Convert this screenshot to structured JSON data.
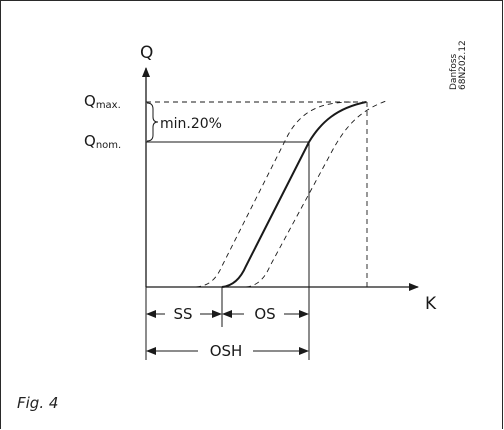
{
  "axes": {
    "y_label": "Q",
    "x_label": "K"
  },
  "levels": {
    "q_max_main": "Q",
    "q_max_sub": "max.",
    "q_nom_main": "Q",
    "q_nom_sub": "nom.",
    "margin_note": "min.20%"
  },
  "dimensions": {
    "ss": "SS",
    "os": "OS",
    "osh": "OSH"
  },
  "watermark": {
    "line1": "Danfoss",
    "line2": "68N202.12"
  },
  "caption": "Fig. 4",
  "colors": {
    "line": "#1a1a1a",
    "frame": "#2a2a2a"
  }
}
